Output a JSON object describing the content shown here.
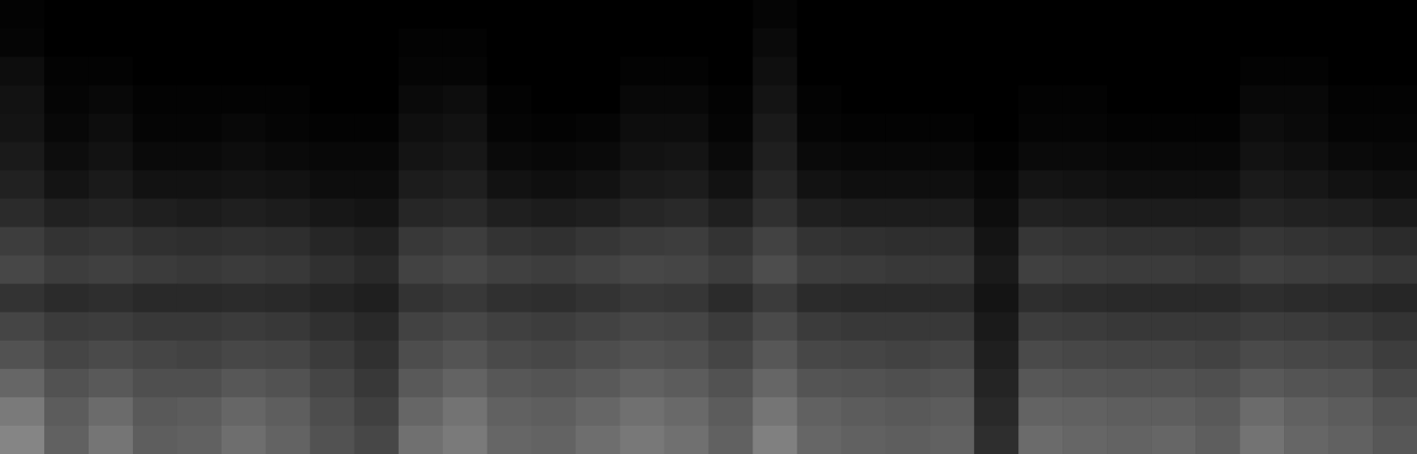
{
  "chart_data": {
    "type": "heatmap",
    "tick_labels": false,
    "color_range": [
      0,
      100
    ],
    "cells": [
      [
        1,
        0,
        0,
        0,
        0,
        0,
        0,
        0,
        0,
        0,
        0,
        0,
        0,
        0,
        0,
        0,
        0,
        2,
        0,
        0,
        0,
        0,
        0,
        0,
        0,
        0,
        0,
        0,
        0,
        0,
        0,
        0
      ],
      [
        2,
        0,
        0,
        0,
        0,
        0,
        0,
        0,
        0,
        1,
        1,
        0,
        0,
        0,
        0,
        0,
        0,
        4,
        0,
        0,
        0,
        0,
        0,
        0,
        0,
        0,
        0,
        0,
        0,
        0,
        0,
        0
      ],
      [
        5,
        1,
        1,
        0,
        0,
        0,
        0,
        0,
        0,
        2,
        2,
        0,
        0,
        0,
        1,
        1,
        0,
        6,
        0,
        0,
        0,
        0,
        0,
        0,
        0,
        0,
        0,
        0,
        1,
        1,
        0,
        0
      ],
      [
        7,
        2,
        3,
        1,
        1,
        1,
        1,
        0,
        0,
        4,
        5,
        1,
        0,
        0,
        3,
        3,
        1,
        8,
        1,
        0,
        0,
        0,
        0,
        1,
        1,
        0,
        0,
        0,
        3,
        3,
        1,
        1
      ],
      [
        8,
        3,
        5,
        2,
        2,
        3,
        2,
        1,
        1,
        6,
        7,
        2,
        1,
        2,
        5,
        5,
        2,
        10,
        2,
        1,
        1,
        1,
        0,
        2,
        2,
        1,
        1,
        1,
        5,
        4,
        2,
        2
      ],
      [
        10,
        5,
        7,
        4,
        4,
        5,
        4,
        3,
        3,
        8,
        9,
        4,
        3,
        4,
        7,
        8,
        4,
        12,
        4,
        3,
        3,
        3,
        1,
        4,
        4,
        3,
        3,
        3,
        7,
        6,
        4,
        3
      ],
      [
        13,
        8,
        10,
        7,
        7,
        8,
        7,
        5,
        5,
        11,
        12,
        7,
        6,
        7,
        10,
        11,
        7,
        15,
        7,
        6,
        6,
        6,
        3,
        8,
        7,
        6,
        6,
        6,
        10,
        9,
        7,
        6
      ],
      [
        17,
        13,
        14,
        12,
        11,
        12,
        11,
        9,
        8,
        15,
        16,
        12,
        11,
        12,
        15,
        16,
        12,
        19,
        12,
        11,
        11,
        11,
        5,
        13,
        12,
        11,
        11,
        11,
        14,
        13,
        12,
        10
      ],
      [
        24,
        20,
        21,
        19,
        18,
        19,
        18,
        15,
        13,
        22,
        24,
        20,
        19,
        21,
        23,
        24,
        20,
        26,
        20,
        19,
        18,
        18,
        8,
        21,
        20,
        19,
        19,
        18,
        21,
        20,
        19,
        17
      ],
      [
        28,
        24,
        25,
        23,
        22,
        23,
        22,
        19,
        16,
        26,
        28,
        25,
        24,
        26,
        28,
        27,
        24,
        30,
        24,
        23,
        22,
        22,
        10,
        25,
        24,
        23,
        23,
        22,
        25,
        24,
        23,
        21
      ],
      [
        20,
        17,
        18,
        16,
        16,
        17,
        16,
        14,
        12,
        20,
        22,
        19,
        18,
        20,
        22,
        21,
        17,
        23,
        17,
        16,
        16,
        16,
        8,
        18,
        17,
        16,
        16,
        16,
        18,
        17,
        16,
        15
      ],
      [
        27,
        23,
        24,
        22,
        22,
        23,
        22,
        19,
        16,
        26,
        28,
        25,
        24,
        26,
        28,
        27,
        23,
        29,
        23,
        22,
        22,
        22,
        10,
        24,
        23,
        22,
        22,
        22,
        24,
        23,
        22,
        20
      ],
      [
        32,
        27,
        29,
        27,
        26,
        28,
        27,
        23,
        19,
        30,
        33,
        29,
        28,
        30,
        32,
        31,
        27,
        34,
        28,
        27,
        26,
        27,
        12,
        29,
        28,
        27,
        27,
        26,
        29,
        28,
        27,
        24
      ],
      [
        40,
        32,
        35,
        31,
        31,
        34,
        32,
        27,
        22,
        35,
        39,
        34,
        33,
        35,
        38,
        36,
        32,
        40,
        33,
        32,
        31,
        32,
        14,
        34,
        33,
        32,
        32,
        31,
        35,
        33,
        32,
        28
      ],
      [
        48,
        36,
        42,
        35,
        36,
        40,
        37,
        30,
        25,
        40,
        45,
        38,
        37,
        40,
        44,
        41,
        36,
        46,
        38,
        36,
        35,
        36,
        16,
        39,
        38,
        37,
        37,
        35,
        42,
        38,
        36,
        32
      ],
      [
        52,
        38,
        46,
        37,
        38,
        43,
        39,
        32,
        28,
        44,
        48,
        40,
        39,
        43,
        47,
        44,
        38,
        50,
        40,
        38,
        37,
        38,
        18,
        42,
        40,
        39,
        40,
        37,
        45,
        40,
        38,
        34
      ]
    ]
  }
}
